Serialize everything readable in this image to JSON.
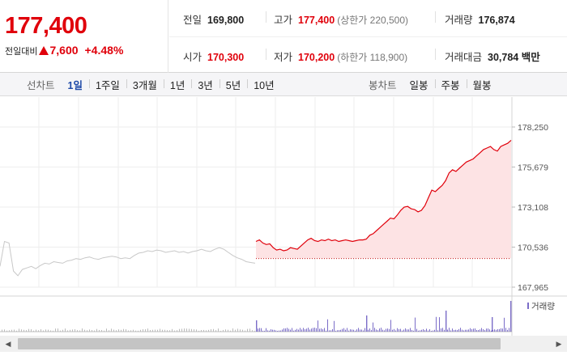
{
  "summary": {
    "price": "177,400",
    "change_label": "전일대비",
    "change_amount": "7,600",
    "change_pct": "+4.48%",
    "prev_close_label": "전일",
    "prev_close": "169,800",
    "high_label": "고가",
    "high": "177,400",
    "upper_limit": "(상한가 220,500)",
    "volume_label": "거래량",
    "volume": "176,874",
    "open_label": "시가",
    "open": "170,300",
    "low_label": "저가",
    "low": "170,200",
    "lower_limit": "(하한가 118,900)",
    "value_label": "거래대금",
    "value": "30,784 백만"
  },
  "toolbar": {
    "line_label": "선차트",
    "line_options": [
      "1일",
      "1주일",
      "3개월",
      "1년",
      "3년",
      "5년",
      "10년"
    ],
    "active_line_option": "1일",
    "candle_label": "봉차트",
    "candle_options": [
      "일봉",
      "주봉",
      "월봉"
    ]
  },
  "colors": {
    "up": "#e0000b",
    "prev_day_line": "#c8c8c8",
    "area_fill": "#fde3e4",
    "volume_bar": "#7b6dc8"
  },
  "chart_data": {
    "type": "line",
    "y_ticks": [
      "178,250",
      "175,679",
      "173,108",
      "170,536",
      "167,965"
    ],
    "ylim": [
      167965,
      178250
    ],
    "reference_price": 169800,
    "volume_legend": "거래량",
    "series": [
      {
        "values": [
          169300,
          170900,
          170800,
          169000,
          168700,
          169100,
          169200,
          169300,
          169150,
          169350,
          169500,
          169450,
          169600,
          169550,
          169500,
          169650,
          169700,
          169800,
          169750,
          169850,
          169900,
          169800,
          169750,
          169850,
          169900,
          169950,
          169900,
          169800,
          169850,
          169800,
          170000,
          170150,
          170200,
          170300,
          170250,
          170350,
          170300,
          170200,
          170250,
          170300,
          170200,
          170250,
          170150,
          170250,
          170300,
          170400,
          170300,
          170250,
          170400,
          170500,
          170400,
          170200,
          170000,
          169850,
          169750,
          169600,
          169550,
          169500
        ]
      },
      {
        "values": [
          170900,
          171000,
          170800,
          170700,
          170750,
          170500,
          170350,
          170400,
          170300,
          170350,
          170500,
          170450,
          170400,
          170600,
          170800,
          171000,
          171100,
          170950,
          170900,
          171000,
          170950,
          171050,
          170950,
          171000,
          170900,
          170950,
          171000,
          170950,
          170900,
          170950,
          171000,
          171000,
          171050,
          171300,
          171400,
          171600,
          171800,
          172000,
          172200,
          172400,
          172350,
          172600,
          172900,
          173100,
          173150,
          173000,
          172950,
          172800,
          172900,
          173200,
          173700,
          174200,
          174100,
          174300,
          174500,
          174800,
          175300,
          175500,
          175400,
          175600,
          175800,
          176000,
          176100,
          176200,
          176400,
          176600,
          176800,
          176900,
          177000,
          176800,
          176700,
          177000,
          177100,
          177200,
          177400
        ]
      }
    ]
  }
}
